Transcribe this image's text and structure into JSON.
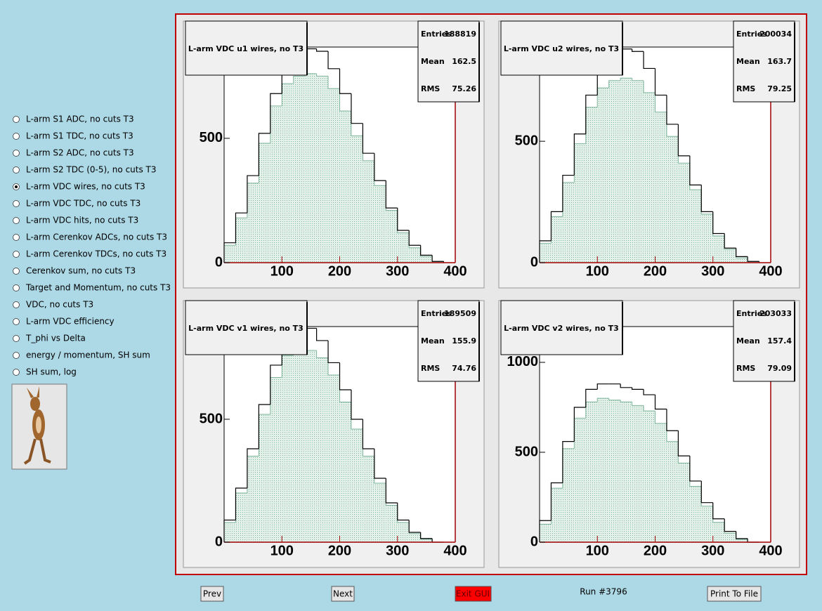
{
  "sidebar": {
    "items": [
      "L-arm S1 ADC, no cuts T3",
      "L-arm S1 TDC, no cuts T3",
      "L-arm S2 ADC, no cuts T3",
      "L-arm S2 TDC (0-5), no cuts T3",
      "L-arm VDC wires, no cuts T3",
      "L-arm VDC TDC, no cuts T3",
      "L-arm VDC hits, no cuts T3",
      "L-arm Cerenkov ADCs, no cuts T3",
      "L-arm Cerenkov TDCs, no cuts T3",
      "Cerenkov sum, no cuts T3",
      "Target and Momentum, no cuts T3",
      "VDC, no cuts T3",
      "L-arm VDC efficiency",
      "T_phi vs Delta",
      "energy / momentum, SH sum",
      "SH sum, log"
    ],
    "selected": 4
  },
  "panels": [
    {
      "title": "L-arm VDC u1 wires, no T3",
      "stats": {
        "entries_label": "Entries",
        "entries": 188819,
        "mean_label": "Mean",
        "mean": 162.5,
        "rms_label": "RMS",
        "rms": 75.26
      },
      "chart": {
        "type": "histogram",
        "bins": [
          0,
          20,
          40,
          60,
          80,
          100,
          120,
          140,
          160,
          180,
          200,
          220,
          240,
          260,
          280,
          300,
          320,
          340,
          360,
          380
        ],
        "xlim": [
          0,
          400
        ],
        "xticks": [
          100,
          200,
          300,
          400
        ],
        "ylim": [
          0,
          867
        ],
        "yticks": [
          0,
          500
        ],
        "series": [
          {
            "color": "#7fb59c",
            "fill": true,
            "values": [
              70,
              180,
              320,
              480,
              630,
              720,
              750,
              760,
              750,
              700,
              610,
              510,
              410,
              310,
              210,
              120,
              60,
              25,
              5
            ]
          },
          {
            "color": "#000000",
            "fill": false,
            "values": [
              80,
              200,
              350,
              520,
              680,
              790,
              840,
              860,
              850,
              780,
              680,
              560,
              440,
              330,
              220,
              130,
              70,
              30,
              5
            ]
          }
        ]
      }
    },
    {
      "title": "L-arm VDC u2 wires, no T3",
      "stats": {
        "entries_label": "Entries",
        "entries": 200034,
        "mean_label": "Mean",
        "mean": 163.7,
        "rms_label": "RMS",
        "rms": 79.25
      },
      "chart": {
        "type": "histogram",
        "bins": [
          0,
          20,
          40,
          60,
          80,
          100,
          120,
          140,
          160,
          180,
          200,
          220,
          240,
          260,
          280,
          300,
          320,
          340,
          360,
          380
        ],
        "xlim": [
          0,
          400
        ],
        "xticks": [
          100,
          200,
          300,
          400
        ],
        "ylim": [
          0,
          888
        ],
        "yticks": [
          0,
          500
        ],
        "series": [
          {
            "color": "#7fb59c",
            "fill": true,
            "values": [
              80,
              190,
              330,
              490,
              640,
              720,
              750,
              760,
              750,
              700,
              620,
              520,
              410,
              300,
              200,
              110,
              55,
              20,
              5
            ]
          },
          {
            "color": "#000000",
            "fill": false,
            "values": [
              90,
              210,
              360,
              530,
              690,
              800,
              850,
              880,
              870,
              800,
              690,
              570,
              440,
              320,
              210,
              120,
              60,
              25,
              5
            ]
          }
        ]
      }
    },
    {
      "title": "L-arm VDC v1 wires, no T3",
      "stats": {
        "entries_label": "Entries",
        "entries": 189509,
        "mean_label": "Mean",
        "mean": 155.9,
        "rms_label": "RMS",
        "rms": 74.76
      },
      "chart": {
        "type": "histogram",
        "bins": [
          0,
          20,
          40,
          60,
          80,
          100,
          120,
          140,
          160,
          180,
          200,
          220,
          240,
          260,
          280,
          300,
          320,
          340,
          360,
          380
        ],
        "xlim": [
          0,
          400
        ],
        "xticks": [
          100,
          200,
          300,
          400
        ],
        "ylim": [
          0,
          877
        ],
        "yticks": [
          0,
          500
        ],
        "series": [
          {
            "color": "#7fb59c",
            "fill": true,
            "values": [
              80,
              200,
              350,
              520,
              670,
              760,
              780,
              780,
              750,
              680,
              570,
              460,
              350,
              240,
              150,
              80,
              35,
              12,
              0
            ]
          },
          {
            "color": "#000000",
            "fill": false,
            "values": [
              90,
              220,
              380,
              560,
              720,
              820,
              860,
              870,
              820,
              730,
              620,
              500,
              380,
              260,
              160,
              90,
              40,
              15,
              0
            ]
          }
        ]
      }
    },
    {
      "title": "L-arm VDC v2 wires, no T3",
      "stats": {
        "entries_label": "Entries",
        "entries": 203033,
        "mean_label": "Mean",
        "mean": 157.4,
        "rms_label": "RMS",
        "rms": 79.09
      },
      "chart": {
        "type": "histogram",
        "bins": [
          0,
          20,
          40,
          60,
          80,
          100,
          120,
          140,
          160,
          180,
          200,
          220,
          240,
          260,
          280,
          300,
          320,
          340,
          360,
          380
        ],
        "xlim": [
          0,
          400
        ],
        "xticks": [
          100,
          200,
          300,
          400
        ],
        "ylim": [
          0,
          1199
        ],
        "yticks": [
          0,
          500,
          1000
        ],
        "series": [
          {
            "color": "#7fb59c",
            "fill": true,
            "values": [
              100,
              300,
              520,
              690,
              780,
              800,
              790,
              780,
              760,
              730,
              660,
              560,
              440,
              310,
              200,
              110,
              50,
              15,
              0
            ]
          },
          {
            "color": "#000000",
            "fill": false,
            "values": [
              120,
              330,
              560,
              750,
              850,
              880,
              880,
              860,
              850,
              820,
              740,
              620,
              480,
              340,
              220,
              130,
              60,
              20,
              0
            ]
          }
        ]
      }
    }
  ],
  "footer": {
    "prev": "Prev",
    "next": "Next",
    "exit": "Exit GUI",
    "run": "Run #3796",
    "print": "Print To File"
  }
}
